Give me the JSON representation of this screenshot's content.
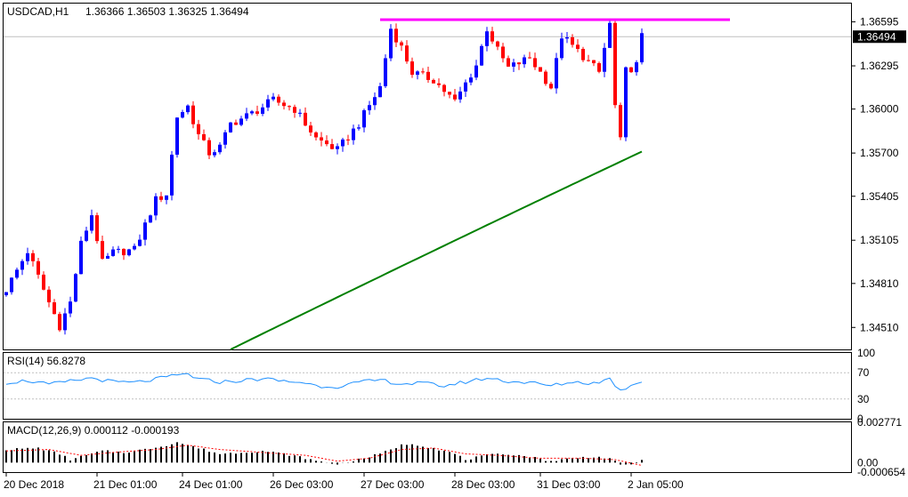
{
  "chart_data": [
    {
      "type": "candlestick",
      "panel": "main",
      "symbol_header": "USDCAD,H1",
      "ohlc_header": "1.36366 1.36503 1.36325 1.36494",
      "current_price": "1.36494",
      "y_ticks": [
        "1.36595",
        "1.36295",
        "1.36000",
        "1.35700",
        "1.35405",
        "1.35105",
        "1.34810",
        "1.34510"
      ],
      "ylim": [
        1.3436,
        1.3672
      ],
      "resistance_level": 1.3661,
      "colors": {
        "bull": "#0000ff",
        "bear": "#ff0000",
        "resistance": "#ff00ff",
        "ma": "#008000",
        "current_line": "#c0c0c0"
      },
      "x_labels": [
        "20 Dec 2018",
        "21 Dec 01:00",
        "24 Dec 01:00",
        "26 Dec 03:00",
        "27 Dec 03:00",
        "28 Dec 03:00",
        "31 Dec 03:00",
        "2 Jan 05:00"
      ],
      "bars": 120,
      "close_path": [
        [
          0,
          1.3477
        ],
        [
          4,
          1.3503
        ],
        [
          8,
          1.3468
        ],
        [
          10,
          1.3452
        ],
        [
          12,
          1.3468
        ],
        [
          14,
          1.3508
        ],
        [
          16,
          1.3528
        ],
        [
          18,
          1.3495
        ],
        [
          20,
          1.3502
        ],
        [
          24,
          1.3504
        ],
        [
          28,
          1.3538
        ],
        [
          30,
          1.3542
        ],
        [
          32,
          1.3595
        ],
        [
          34,
          1.3602
        ],
        [
          36,
          1.3582
        ],
        [
          38,
          1.357
        ],
        [
          40,
          1.3574
        ],
        [
          42,
          1.359
        ],
        [
          46,
          1.3597
        ],
        [
          50,
          1.3606
        ],
        [
          54,
          1.36
        ],
        [
          58,
          1.358
        ],
        [
          62,
          1.3572
        ],
        [
          66,
          1.359
        ],
        [
          70,
          1.3615
        ],
        [
          72,
          1.3655
        ],
        [
          74,
          1.3642
        ],
        [
          76,
          1.3625
        ],
        [
          80,
          1.362
        ],
        [
          84,
          1.3605
        ],
        [
          88,
          1.363
        ],
        [
          90,
          1.3655
        ],
        [
          92,
          1.364
        ],
        [
          94,
          1.3628
        ],
        [
          98,
          1.3635
        ],
        [
          102,
          1.3615
        ],
        [
          104,
          1.365
        ],
        [
          108,
          1.3636
        ],
        [
          111,
          1.3625
        ],
        [
          113,
          1.3658
        ],
        [
          114,
          1.3602
        ],
        [
          115,
          1.3578
        ],
        [
          116,
          1.3626
        ],
        [
          118,
          1.363
        ],
        [
          119,
          1.36494
        ]
      ],
      "ma_path": [
        [
          42,
          1.3436
        ],
        [
          119,
          1.3571
        ]
      ]
    },
    {
      "type": "line",
      "panel": "rsi",
      "header": "RSI(14) 56.8278",
      "y_ticks": [
        "100",
        "70",
        "30",
        "0"
      ],
      "ylim": [
        0,
        100
      ],
      "levels": [
        70,
        30
      ],
      "color": "#1e90ff",
      "path": [
        [
          0,
          55
        ],
        [
          4,
          58
        ],
        [
          8,
          52
        ],
        [
          12,
          57
        ],
        [
          16,
          62
        ],
        [
          20,
          56
        ],
        [
          24,
          55
        ],
        [
          28,
          60
        ],
        [
          32,
          66
        ],
        [
          34,
          68
        ],
        [
          36,
          60
        ],
        [
          40,
          56
        ],
        [
          44,
          58
        ],
        [
          48,
          61
        ],
        [
          52,
          57
        ],
        [
          56,
          55
        ],
        [
          58,
          50
        ],
        [
          62,
          49
        ],
        [
          66,
          55
        ],
        [
          70,
          59
        ],
        [
          74,
          53
        ],
        [
          78,
          54
        ],
        [
          82,
          50
        ],
        [
          86,
          56
        ],
        [
          90,
          62
        ],
        [
          94,
          57
        ],
        [
          98,
          55
        ],
        [
          102,
          50
        ],
        [
          106,
          56
        ],
        [
          110,
          54
        ],
        [
          113,
          61
        ],
        [
          115,
          42
        ],
        [
          117,
          52
        ],
        [
          119,
          56.8278
        ]
      ]
    },
    {
      "type": "bar",
      "panel": "macd",
      "header": "MACD(12,26,9) 0.000112 -0.000193",
      "y_ticks": [
        "0.002771",
        "0.00",
        "-0.000654"
      ],
      "ylim": [
        -0.000654,
        0.002771
      ],
      "bar_color": "#000000",
      "signal_color": "#ff0000",
      "hist_path": [
        [
          0,
          0.0009
        ],
        [
          6,
          0.001
        ],
        [
          10,
          0.0006
        ],
        [
          12,
          0.0002
        ],
        [
          14,
          0.0004
        ],
        [
          18,
          0.0008
        ],
        [
          22,
          0.0007
        ],
        [
          26,
          0.0009
        ],
        [
          30,
          0.0012
        ],
        [
          32,
          0.0014
        ],
        [
          36,
          0.001
        ],
        [
          40,
          0.0006
        ],
        [
          44,
          0.0007
        ],
        [
          48,
          0.0008
        ],
        [
          52,
          0.0006
        ],
        [
          56,
          0.0003
        ],
        [
          58,
          0.0001
        ],
        [
          62,
          -0.0001
        ],
        [
          66,
          0.0002
        ],
        [
          70,
          0.0006
        ],
        [
          74,
          0.0012
        ],
        [
          76,
          0.0013
        ],
        [
          80,
          0.001
        ],
        [
          84,
          0.0006
        ],
        [
          86,
          0.0002
        ],
        [
          90,
          0.0005
        ],
        [
          94,
          0.0006
        ],
        [
          98,
          0.0004
        ],
        [
          102,
          0.0001
        ],
        [
          106,
          0.0003
        ],
        [
          110,
          0.0004
        ],
        [
          113,
          0.0003
        ],
        [
          115,
          -0.0002
        ],
        [
          117,
          -0.0001
        ],
        [
          119,
          0.000112
        ]
      ],
      "signal_path": [
        [
          0,
          0.0008
        ],
        [
          8,
          0.0009
        ],
        [
          14,
          0.0005
        ],
        [
          20,
          0.0007
        ],
        [
          28,
          0.0009
        ],
        [
          34,
          0.0012
        ],
        [
          40,
          0.0009
        ],
        [
          48,
          0.0007
        ],
        [
          56,
          0.0005
        ],
        [
          62,
          0.0001
        ],
        [
          68,
          0.0003
        ],
        [
          74,
          0.0009
        ],
        [
          80,
          0.001
        ],
        [
          86,
          0.0006
        ],
        [
          92,
          0.0005
        ],
        [
          100,
          0.0003
        ],
        [
          108,
          0.0003
        ],
        [
          114,
          0.0002
        ],
        [
          119,
          -0.000193
        ]
      ]
    }
  ]
}
